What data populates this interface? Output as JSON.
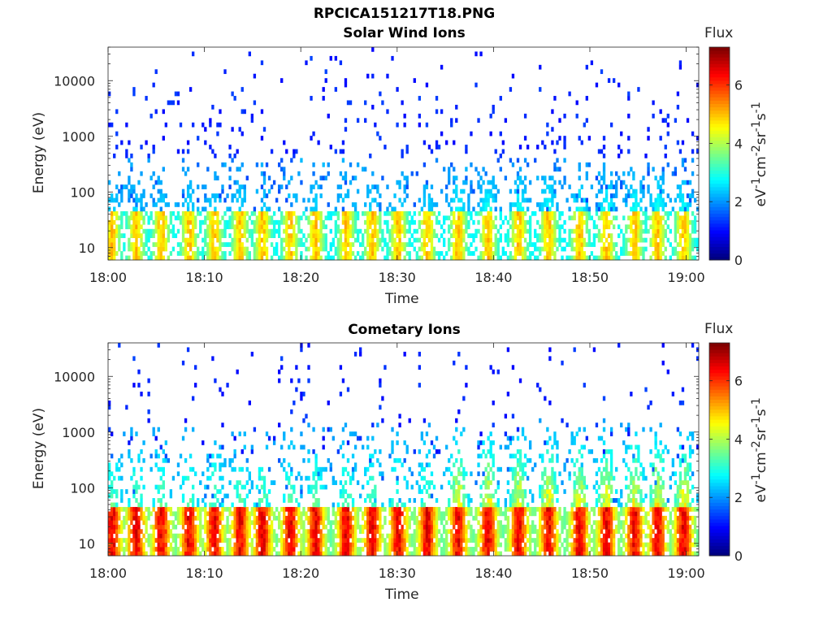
{
  "figure": {
    "title": "RPCICA151217T18.PNG",
    "colorbar_unit": "eV-1cm-2sr-1s-1"
  },
  "chart_data": [
    {
      "type": "heatmap",
      "title": "Solar Wind Ions",
      "xlabel": "Time",
      "ylabel": "Energy (eV)",
      "x_ticks": [
        "18:00",
        "18:10",
        "18:20",
        "18:30",
        "18:40",
        "18:50",
        "19:00"
      ],
      "x_range": [
        "18:00",
        "19:01"
      ],
      "y_scale": "log",
      "y_ticks": [
        "10",
        "100",
        "1000",
        "10000"
      ],
      "y_range": [
        6,
        40000
      ],
      "colorbar": {
        "label": "Flux",
        "ticks": [
          "0",
          "2",
          "4",
          "6"
        ],
        "range": [
          0,
          7.3
        ],
        "colormap": "jet"
      },
      "spin_burst_minutes": [
        0.3,
        2.8,
        5.4,
        8.3,
        10.9,
        13.6,
        15.9,
        18.8,
        21.4,
        24.6,
        27.3,
        30.0,
        33.0,
        36.2,
        39.3,
        42.5,
        45.6,
        48.8,
        51.6,
        54.5,
        56.9,
        59.6
      ],
      "peak_flux": 5.3,
      "peak_energy_band_eV": [
        10,
        45
      ]
    },
    {
      "type": "heatmap",
      "title": "Cometary Ions",
      "xlabel": "Time",
      "ylabel": "Energy (eV)",
      "x_ticks": [
        "18:00",
        "18:10",
        "18:20",
        "18:30",
        "18:40",
        "18:50",
        "19:00"
      ],
      "x_range": [
        "18:00",
        "19:01"
      ],
      "y_scale": "log",
      "y_ticks": [
        "10",
        "100",
        "1000",
        "10000"
      ],
      "y_range": [
        6,
        40000
      ],
      "colorbar": {
        "label": "Flux",
        "ticks": [
          "0",
          "2",
          "4",
          "6"
        ],
        "range": [
          0,
          7.3
        ],
        "colormap": "jet"
      },
      "spin_burst_minutes": [
        0.3,
        2.8,
        5.4,
        8.3,
        10.9,
        13.6,
        15.9,
        18.8,
        21.4,
        24.6,
        27.3,
        30.0,
        33.0,
        36.2,
        39.3,
        42.5,
        45.6,
        48.8,
        51.6,
        54.5,
        56.9,
        59.6
      ],
      "peak_flux": 6.9,
      "peak_energy_band_eV": [
        8,
        45
      ]
    }
  ]
}
